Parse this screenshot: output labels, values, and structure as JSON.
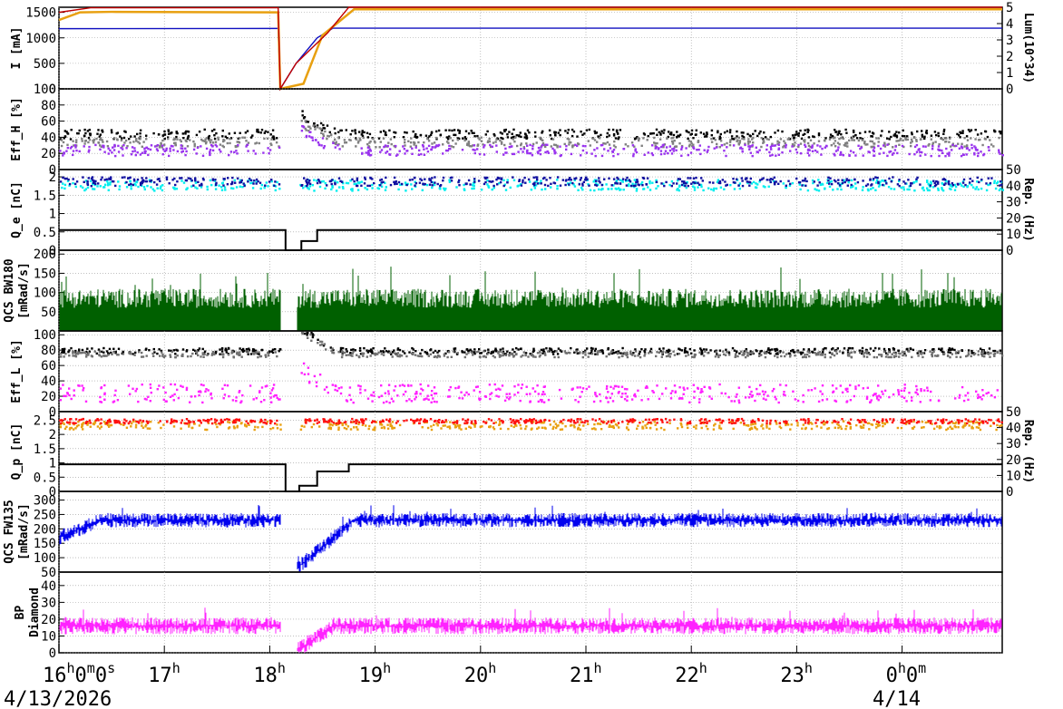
{
  "chart_data": [
    {
      "type": "line",
      "id": "current",
      "ylabel_left": "I [mA]",
      "ylabel_right": "Lum(10^34)",
      "ylim": [
        0,
        1600
      ],
      "yticks": [
        0,
        500,
        1000,
        1500
      ],
      "ylim_right": [
        0,
        5
      ],
      "yticks_right": [
        0,
        1,
        2,
        3,
        4,
        5
      ],
      "series": [
        {
          "color": "#1010c0",
          "x": [
            16.0,
            18.08,
            18.1,
            18.25,
            18.45,
            18.6,
            18.75,
            24.95
          ],
          "y": [
            1180,
            1185,
            0,
            500,
            1000,
            1190,
            1190,
            1190
          ]
        },
        {
          "color": "#e8a010",
          "x": [
            16.0,
            16.2,
            16.5,
            18.08,
            18.1,
            18.32,
            18.5,
            18.8,
            24.95
          ],
          "y": [
            1350,
            1500,
            1510,
            1500,
            0,
            100,
            1050,
            1560,
            1560
          ]
        },
        {
          "color": "#c00000",
          "x": [
            16.0,
            16.3,
            18.08,
            18.1,
            18.25,
            18.55,
            18.75,
            24.95
          ],
          "y": [
            1500,
            1590,
            1590,
            0,
            500,
            1100,
            1600,
            1600
          ]
        }
      ]
    },
    {
      "type": "scatter",
      "id": "effh",
      "ylabel_left": "Eff_H [%]",
      "ylim": [
        0,
        100
      ],
      "yticks": [
        0,
        20,
        40,
        60,
        80,
        100
      ],
      "series": [
        {
          "color": "#000000",
          "level": 45,
          "spread": 6
        },
        {
          "color": "#808080",
          "level": 35,
          "spread": 6
        },
        {
          "color": "#9933ee",
          "level": 25,
          "spread": 7
        }
      ]
    },
    {
      "type": "scatter",
      "id": "qe",
      "ylabel_left": "Q_e [nC]",
      "ylabel_right": "Rep. (Hz)",
      "ylim": [
        0,
        2.2
      ],
      "yticks": [
        0,
        0.5,
        1,
        1.5,
        2
      ],
      "ylim_right": [
        0,
        50
      ],
      "yticks_right": [
        0,
        10,
        20,
        30,
        40,
        50
      ],
      "series": [
        {
          "color": "#00eeee",
          "level": 1.8,
          "spread": 0.15
        },
        {
          "color": "#1010a0",
          "level": 1.9,
          "spread": 0.12
        }
      ],
      "rep_steps": {
        "x": [
          16.0,
          18.1,
          18.15,
          18.3,
          18.45,
          24.95
        ],
        "y": [
          0.55,
          0.55,
          0,
          0.25,
          0.55,
          0.55
        ]
      }
    },
    {
      "type": "bar",
      "id": "bw180",
      "ylabel_left": "QCS BW180 [mRad/s]",
      "ylim": [
        0,
        210
      ],
      "yticks": [
        50,
        100,
        150,
        200
      ],
      "series": [
        {
          "color": "#006000",
          "level": 60,
          "spread": 50
        }
      ]
    },
    {
      "type": "scatter",
      "id": "effl",
      "ylabel_left": "Eff_L [%]",
      "ylim": [
        0,
        105
      ],
      "yticks": [
        0,
        20,
        40,
        60,
        80,
        100
      ],
      "series": [
        {
          "color": "#000000",
          "level": 80,
          "spread": 4
        },
        {
          "color": "#707070",
          "level": 76,
          "spread": 4
        },
        {
          "color": "#ff22ff",
          "level": 25,
          "spread": 12
        }
      ]
    },
    {
      "type": "scatter",
      "id": "qp",
      "ylabel_left": "Q_p [nC]",
      "ylabel_right": "Rep. (Hz)",
      "ylim": [
        0,
        2.8
      ],
      "yticks": [
        0,
        0.5,
        1,
        1.5,
        2,
        2.5
      ],
      "ylim_right": [
        0,
        50
      ],
      "yticks_right": [
        0,
        10,
        20,
        30,
        40,
        50
      ],
      "series": [
        {
          "color": "#e8a010",
          "level": 2.35,
          "spread": 0.15
        },
        {
          "color": "#ff1010",
          "level": 2.5,
          "spread": 0.08
        }
      ],
      "rep_steps": {
        "x": [
          16.0,
          18.1,
          18.15,
          18.28,
          18.45,
          18.75,
          24.95
        ],
        "y": [
          0.95,
          0.95,
          0,
          0.2,
          0.7,
          0.95,
          0.95
        ]
      }
    },
    {
      "type": "bar",
      "id": "fw135",
      "ylabel_left": "QCS FW135 [mRad/s]",
      "ylim": [
        50,
        330
      ],
      "yticks": [
        50,
        100,
        150,
        200,
        250,
        300
      ],
      "series": [
        {
          "color": "#0000ee",
          "level": 230,
          "spread": 25
        }
      ]
    },
    {
      "type": "bar",
      "id": "bp",
      "ylabel_left": "BP Diamond",
      "ylim": [
        0,
        48
      ],
      "yticks": [
        0,
        10,
        20,
        30,
        40
      ],
      "series": [
        {
          "color": "#ff22ff",
          "level": 16,
          "spread": 5
        }
      ]
    }
  ],
  "x_axis": {
    "range": [
      16.0,
      24.95
    ],
    "tick_labels": [
      {
        "x": 16,
        "base": "16",
        "sup": "h",
        "rest": "0",
        "sup2": "m",
        "rest2": "0",
        "sup3": "s"
      },
      {
        "x": 17,
        "base": "17",
        "sup": "h"
      },
      {
        "x": 18,
        "base": "18",
        "sup": "h"
      },
      {
        "x": 19,
        "base": "19",
        "sup": "h"
      },
      {
        "x": 20,
        "base": "20",
        "sup": "h"
      },
      {
        "x": 21,
        "base": "21",
        "sup": "h"
      },
      {
        "x": 22,
        "base": "22",
        "sup": "h"
      },
      {
        "x": 23,
        "base": "23",
        "sup": "h"
      },
      {
        "x": 24,
        "base": "0",
        "sup": "h",
        "rest": "0",
        "sup2": "m"
      }
    ],
    "date_left": "4/13/2026",
    "date_right": "4/14"
  }
}
